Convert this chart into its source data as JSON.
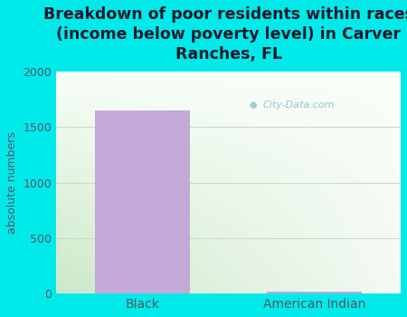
{
  "title": "Breakdown of poor residents within races\n(income below poverty level) in Carver\nRanches, FL",
  "categories": [
    "Black",
    "American Indian"
  ],
  "values": [
    1650,
    18
  ],
  "bar_color": "#c4a8d8",
  "ylabel": "absolute numbers",
  "ylim": [
    0,
    2000
  ],
  "yticks": [
    0,
    500,
    1000,
    1500,
    2000
  ],
  "background_color": "#00eaea",
  "title_fontsize": 12.5,
  "title_color": "#1a1a2e",
  "tick_color": "#555566",
  "ylabel_color": "#555566",
  "watermark": "City-Data.com",
  "grid_color": "#c8dfc0",
  "plot_bg_left": "#d8ecd0",
  "plot_bg_right": "#f0f8f0"
}
